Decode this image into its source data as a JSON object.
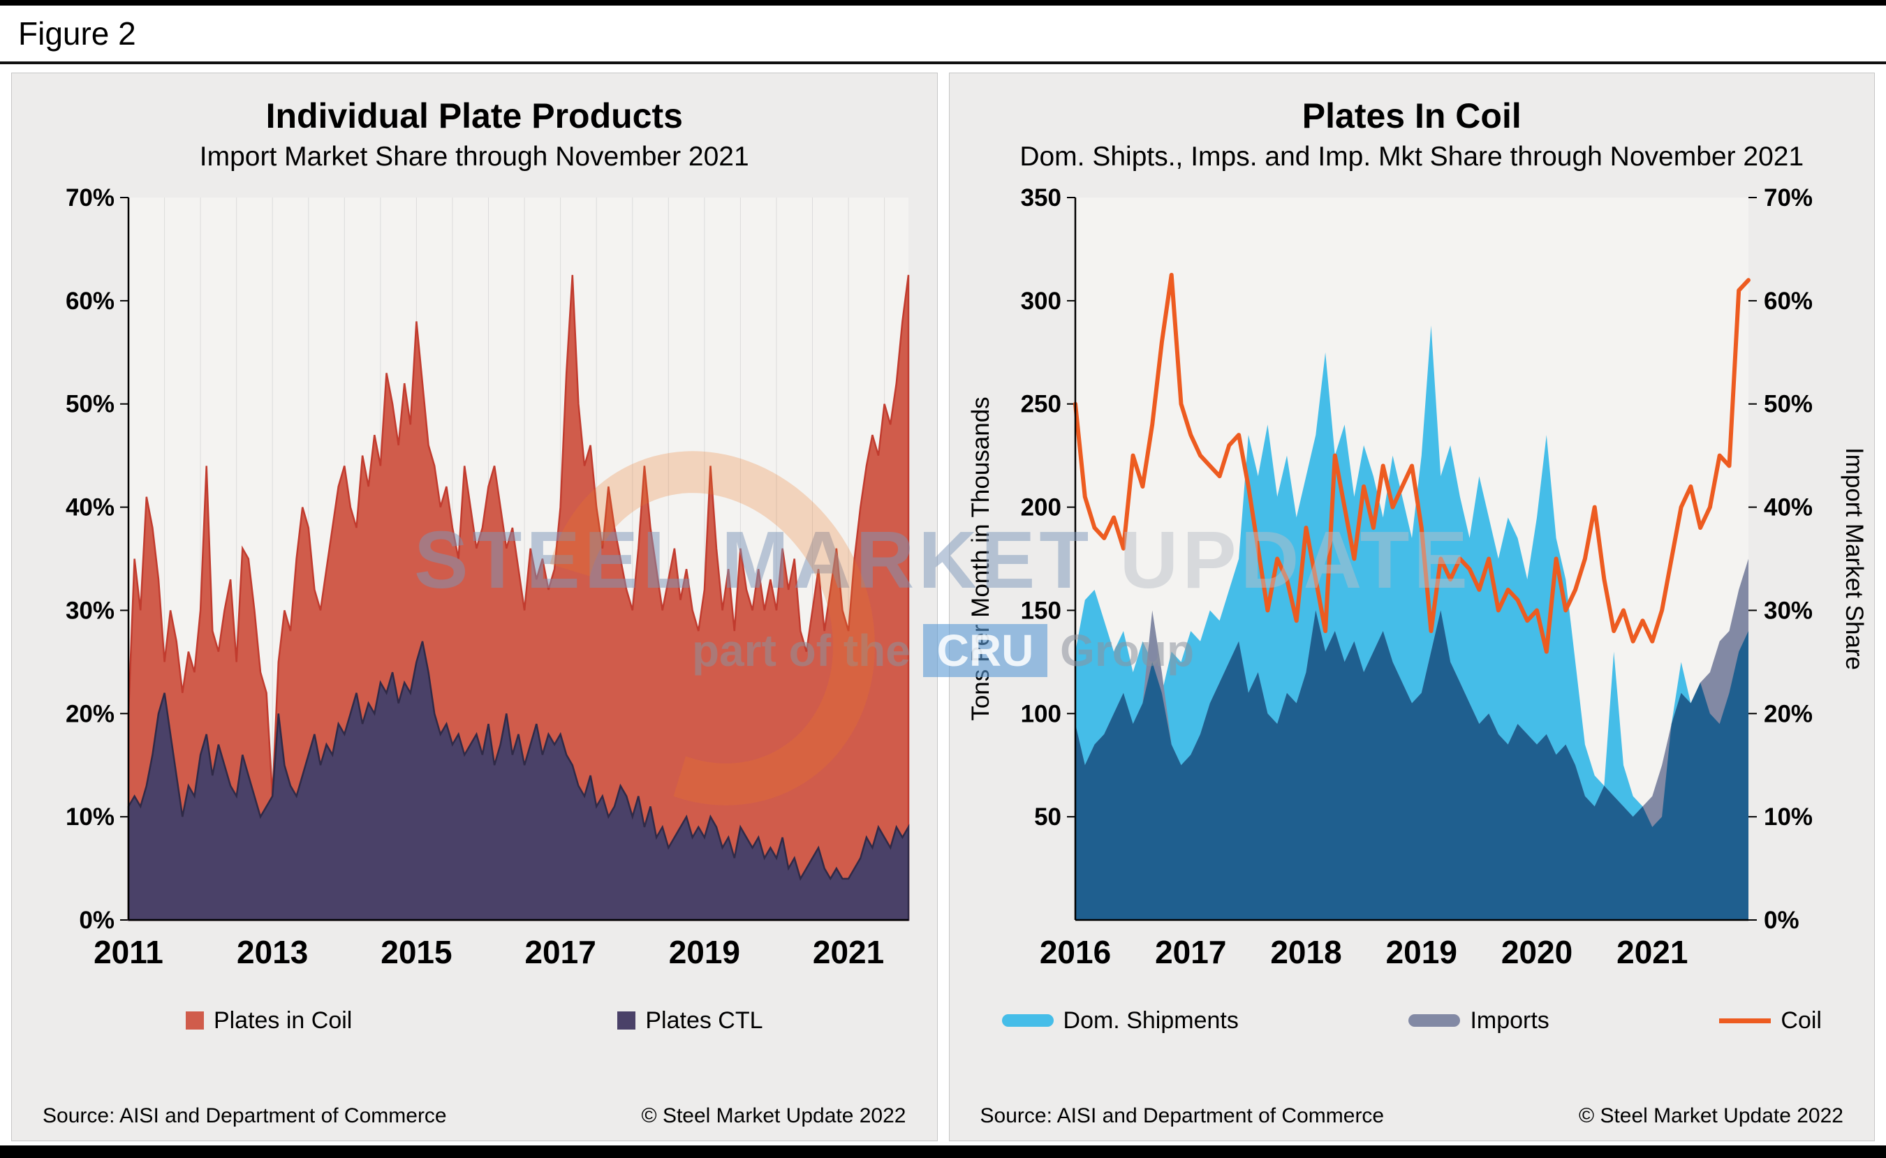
{
  "page": {
    "figure_label": "Figure 2"
  },
  "watermark": {
    "line1_strong": "STEEL MARKET",
    "line1_light": "UPDATE",
    "line2_pre": "part of the",
    "line2_box": "CRU",
    "line2_post": "Group",
    "colors": {
      "strong_text": "#7C96BA",
      "light_text": "#BABFC7",
      "arc": "#EC7828",
      "cru_box": "#5B9BD5"
    }
  },
  "left_panel": {
    "title": "Individual Plate Products",
    "subtitle": "Import Market Share through November 2021",
    "legend": [
      {
        "label": "Plates in Coil"
      },
      {
        "label": "Plates CTL"
      }
    ],
    "source": "Source: AISI and Department of Commerce",
    "copyright": "© Steel Market Update 2022"
  },
  "right_panel": {
    "title": "Plates In Coil",
    "subtitle": "Dom. Shipts., Imps. and Imp. Mkt Share through November 2021",
    "legend": [
      {
        "label": "Dom. Shipments"
      },
      {
        "label": "Imports"
      },
      {
        "label": "Coil"
      }
    ],
    "source": "Source: AISI and Department of Commerce",
    "copyright": "© Steel Market Update 2022"
  },
  "chart_data": [
    {
      "type": "area",
      "title": "Individual Plate Products",
      "subtitle": "Import Market Share through November 2021",
      "x_start": "2011-01",
      "x_end": "2021-11",
      "x_frequency": "monthly",
      "ylim": [
        0,
        70
      ],
      "y_unit": "%",
      "yticks": [
        0,
        10,
        20,
        30,
        40,
        50,
        60,
        70
      ],
      "xticks": [
        {
          "label": "2011",
          "index": 0
        },
        {
          "label": "2013",
          "index": 24
        },
        {
          "label": "2015",
          "index": 48
        },
        {
          "label": "2017",
          "index": 72
        },
        {
          "label": "2019",
          "index": 96
        },
        {
          "label": "2021",
          "index": 120
        }
      ],
      "grid": "vertical-light",
      "series": [
        {
          "name": "Plates in Coil",
          "kind": "area",
          "fill": "#D05C4B",
          "stroke": "#C13B2E",
          "values": [
            20,
            35,
            30,
            41,
            38,
            33,
            25,
            30,
            27,
            22,
            26,
            24,
            30,
            44,
            28,
            26,
            30,
            33,
            25,
            36,
            35,
            30,
            24,
            22,
            12,
            25,
            30,
            28,
            35,
            40,
            38,
            32,
            30,
            34,
            38,
            42,
            44,
            40,
            38,
            45,
            42,
            47,
            44,
            53,
            50,
            46,
            52,
            48,
            58,
            52,
            46,
            44,
            40,
            42,
            38,
            35,
            44,
            40,
            36,
            38,
            42,
            44,
            40,
            36,
            38,
            34,
            30,
            36,
            33,
            35,
            32,
            34,
            40,
            53,
            62.5,
            50,
            44,
            46,
            40,
            36,
            42,
            38,
            35,
            32,
            30,
            36,
            44,
            38,
            34,
            30,
            33,
            36,
            31,
            34,
            30,
            28,
            32,
            44,
            36,
            30,
            34,
            28,
            36,
            32,
            30,
            34,
            30,
            33,
            30,
            36,
            32,
            35,
            28,
            26,
            30,
            34,
            28,
            32,
            36,
            30,
            28,
            35,
            40,
            44,
            47,
            45,
            50,
            48,
            52,
            58,
            62.5
          ]
        },
        {
          "name": "Plates CTL",
          "kind": "area",
          "fill": "#4A4168",
          "stroke": "#2F2A47",
          "values": [
            11,
            12,
            11,
            13,
            16,
            20,
            22,
            18,
            14,
            10,
            13,
            12,
            16,
            18,
            14,
            17,
            15,
            13,
            12,
            16,
            14,
            12,
            10,
            11,
            12,
            20,
            15,
            13,
            12,
            14,
            16,
            18,
            15,
            17,
            16,
            19,
            18,
            20,
            22,
            19,
            21,
            20,
            23,
            22,
            24,
            21,
            23,
            22,
            25,
            27,
            24,
            20,
            18,
            19,
            17,
            18,
            16,
            17,
            18,
            16,
            19,
            15,
            17,
            20,
            16,
            18,
            15,
            17,
            19,
            16,
            18,
            17,
            18,
            16,
            15,
            13,
            12,
            14,
            11,
            12,
            10,
            11,
            13,
            12,
            10,
            12,
            9,
            11,
            8,
            9,
            7,
            8,
            9,
            10,
            8,
            9,
            8,
            10,
            9,
            7,
            8,
            6,
            9,
            8,
            7,
            8,
            6,
            7,
            6,
            8,
            5,
            6,
            4,
            5,
            6,
            7,
            5,
            4,
            5,
            4,
            4,
            5,
            6,
            8,
            7,
            9,
            8,
            7,
            9,
            8,
            9
          ]
        }
      ]
    },
    {
      "type": "area",
      "title": "Plates In Coil",
      "subtitle": "Dom. Shipts., Imps. and Imp. Mkt Share through November 2021",
      "x_start": "2016-01",
      "x_end": "2021-11",
      "x_frequency": "monthly",
      "y_left": {
        "label": "Tons Per Month in Thousands",
        "lim": [
          0,
          350
        ],
        "ticks": [
          50,
          100,
          150,
          200,
          250,
          300,
          350
        ]
      },
      "y_right": {
        "label": "Import Market Share",
        "unit": "%",
        "lim": [
          0,
          70
        ],
        "ticks": [
          0,
          10,
          20,
          30,
          40,
          50,
          60,
          70
        ]
      },
      "overlap_color": "#1F5F8F",
      "xticks": [
        {
          "label": "2016",
          "index": 0
        },
        {
          "label": "2017",
          "index": 12
        },
        {
          "label": "2018",
          "index": 24
        },
        {
          "label": "2019",
          "index": 36
        },
        {
          "label": "2020",
          "index": 48
        },
        {
          "label": "2021",
          "index": 60
        }
      ],
      "series": [
        {
          "name": "Dom. Shipments",
          "kind": "area",
          "axis": "left",
          "fill": "#45BDE8",
          "values": [
            130,
            155,
            160,
            145,
            130,
            140,
            120,
            135,
            125,
            110,
            130,
            125,
            140,
            135,
            150,
            145,
            160,
            175,
            235,
            215,
            240,
            205,
            225,
            195,
            215,
            235,
            275,
            225,
            240,
            205,
            230,
            215,
            195,
            225,
            205,
            185,
            225,
            288,
            215,
            230,
            205,
            185,
            215,
            195,
            175,
            195,
            185,
            165,
            195,
            235,
            185,
            165,
            125,
            85,
            70,
            65,
            130,
            75,
            60,
            55,
            45,
            50,
            95,
            125,
            105,
            115,
            100,
            95,
            110,
            130,
            140
          ]
        },
        {
          "name": "Imports",
          "kind": "area",
          "axis": "left",
          "fill": "#8289A4",
          "values": [
            95,
            75,
            85,
            90,
            100,
            110,
            95,
            105,
            150,
            120,
            85,
            75,
            80,
            90,
            105,
            115,
            125,
            135,
            110,
            120,
            100,
            95,
            110,
            105,
            120,
            150,
            130,
            140,
            125,
            135,
            120,
            130,
            140,
            125,
            115,
            105,
            110,
            130,
            150,
            125,
            115,
            105,
            95,
            100,
            90,
            85,
            95,
            90,
            85,
            90,
            80,
            85,
            75,
            60,
            55,
            65,
            60,
            55,
            50,
            55,
            60,
            75,
            95,
            110,
            105,
            115,
            120,
            135,
            140,
            160,
            175
          ]
        },
        {
          "name": "Coil",
          "kind": "line",
          "axis": "right",
          "stroke": "#ED5B20",
          "values": [
            50,
            41,
            38,
            37,
            39,
            36,
            45,
            42,
            48,
            56,
            62.5,
            50,
            47,
            45,
            44,
            43,
            46,
            47,
            42,
            36,
            30,
            35,
            33,
            29,
            38,
            33,
            28,
            45,
            40,
            35,
            42,
            38,
            44,
            40,
            42,
            44,
            38,
            28,
            35,
            33,
            35,
            34,
            32,
            35,
            30,
            32,
            31,
            29,
            30,
            26,
            35,
            30,
            32,
            35,
            40,
            33,
            28,
            30,
            27,
            29,
            27,
            30,
            35,
            40,
            42,
            38,
            40,
            45,
            44,
            61,
            62
          ]
        }
      ]
    }
  ]
}
